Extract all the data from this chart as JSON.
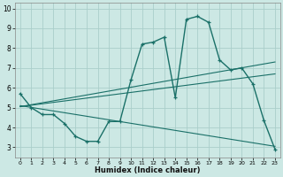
{
  "xlabel": "Humidex (Indice chaleur)",
  "bg_color": "#cce8e4",
  "grid_color": "#aaceca",
  "line_color": "#1a7068",
  "xlim": [
    -0.5,
    23.5
  ],
  "ylim": [
    2.5,
    10.3
  ],
  "xticks": [
    0,
    1,
    2,
    3,
    4,
    5,
    6,
    7,
    8,
    9,
    10,
    11,
    12,
    13,
    14,
    15,
    16,
    17,
    18,
    19,
    20,
    21,
    22,
    23
  ],
  "yticks": [
    3,
    4,
    5,
    6,
    7,
    8,
    9,
    10
  ],
  "main_x": [
    0,
    1,
    2,
    3,
    4,
    5,
    6,
    7,
    8,
    9,
    10,
    11,
    12,
    13,
    14,
    15,
    16,
    17,
    18,
    19,
    20,
    21,
    22,
    23
  ],
  "main_y": [
    5.7,
    5.0,
    4.65,
    4.65,
    4.2,
    3.55,
    3.3,
    3.3,
    4.3,
    4.3,
    6.4,
    8.2,
    8.3,
    8.55,
    5.5,
    9.45,
    9.6,
    9.3,
    7.4,
    6.9,
    7.0,
    6.2,
    4.35,
    2.9
  ],
  "trend1_x": [
    0,
    23
  ],
  "trend1_y": [
    5.05,
    7.3
  ],
  "trend2_x": [
    0,
    23
  ],
  "trend2_y": [
    5.05,
    6.7
  ],
  "trend3_x": [
    0,
    23
  ],
  "trend3_y": [
    5.1,
    3.05
  ]
}
